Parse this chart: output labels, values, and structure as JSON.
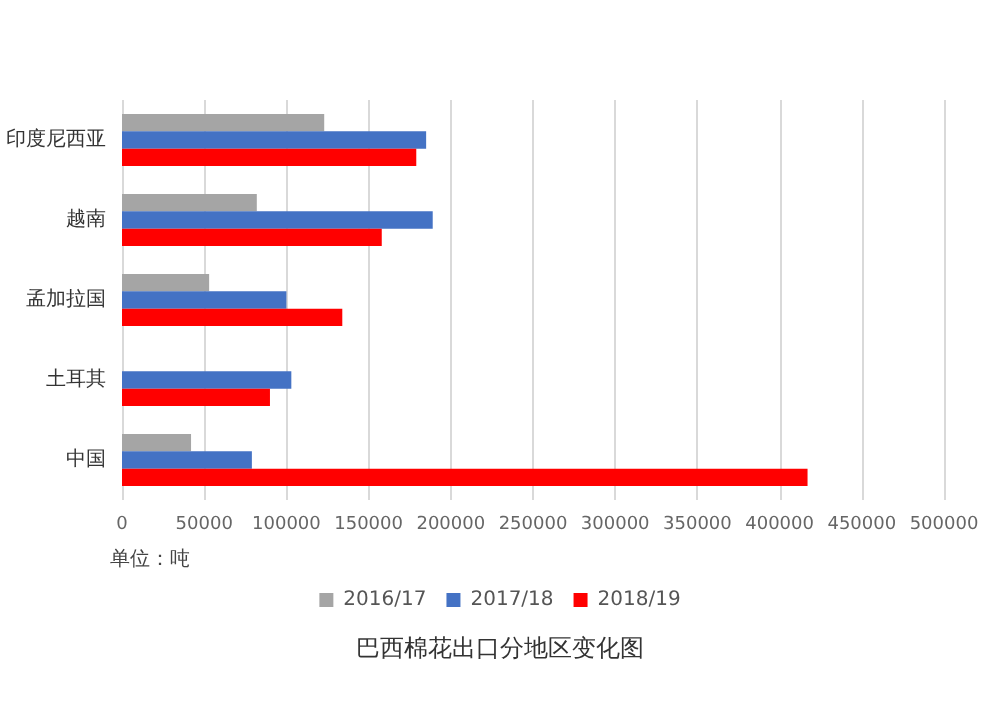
{
  "chart_data": {
    "type": "bar",
    "orientation": "horizontal",
    "title": "巴西棉花出口分地区变化图",
    "categories": [
      "印度尼西亚",
      "越南",
      "孟加拉国",
      "土耳其",
      "中国"
    ],
    "series": [
      {
        "name": "2016/17",
        "color": "#a5a5a5",
        "values": [
          123000,
          82000,
          53000,
          null,
          42000
        ]
      },
      {
        "name": "2017/18",
        "color": "#4472c4",
        "values": [
          185000,
          189000,
          100000,
          103000,
          79000
        ]
      },
      {
        "name": "2018/19",
        "color": "#ff0000",
        "values": [
          179000,
          158000,
          134000,
          90000,
          417000
        ]
      }
    ],
    "xlim": [
      0,
      500000
    ],
    "xticks": [
      0,
      50000,
      100000,
      150000,
      200000,
      250000,
      300000,
      350000,
      400000,
      450000,
      500000
    ],
    "annotations": [
      "单位：吨"
    ],
    "grid": "x",
    "legend": "bottom"
  }
}
